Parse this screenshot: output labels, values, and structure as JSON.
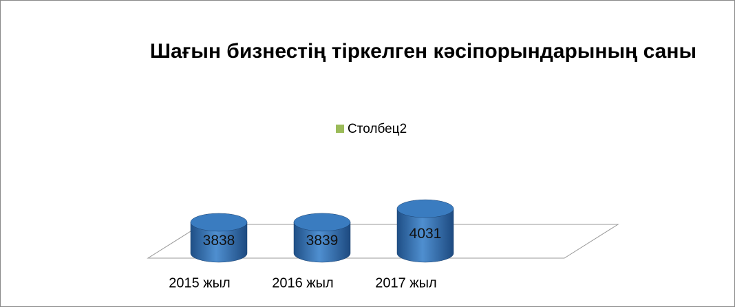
{
  "chart_data": {
    "type": "cylinder-bar",
    "title": "Шағын бизнестің тіркелген кәсіпорындарының саны",
    "categories": [
      "2015 жыл",
      "2016 жыл",
      "2017 жыл"
    ],
    "series": [
      {
        "name": "Столбец2",
        "color": "#9bbb59",
        "values": [
          3838,
          3839,
          4031
        ]
      }
    ],
    "bar_color": "#2e6db0",
    "ylim": [
      3400,
      4100
    ]
  }
}
